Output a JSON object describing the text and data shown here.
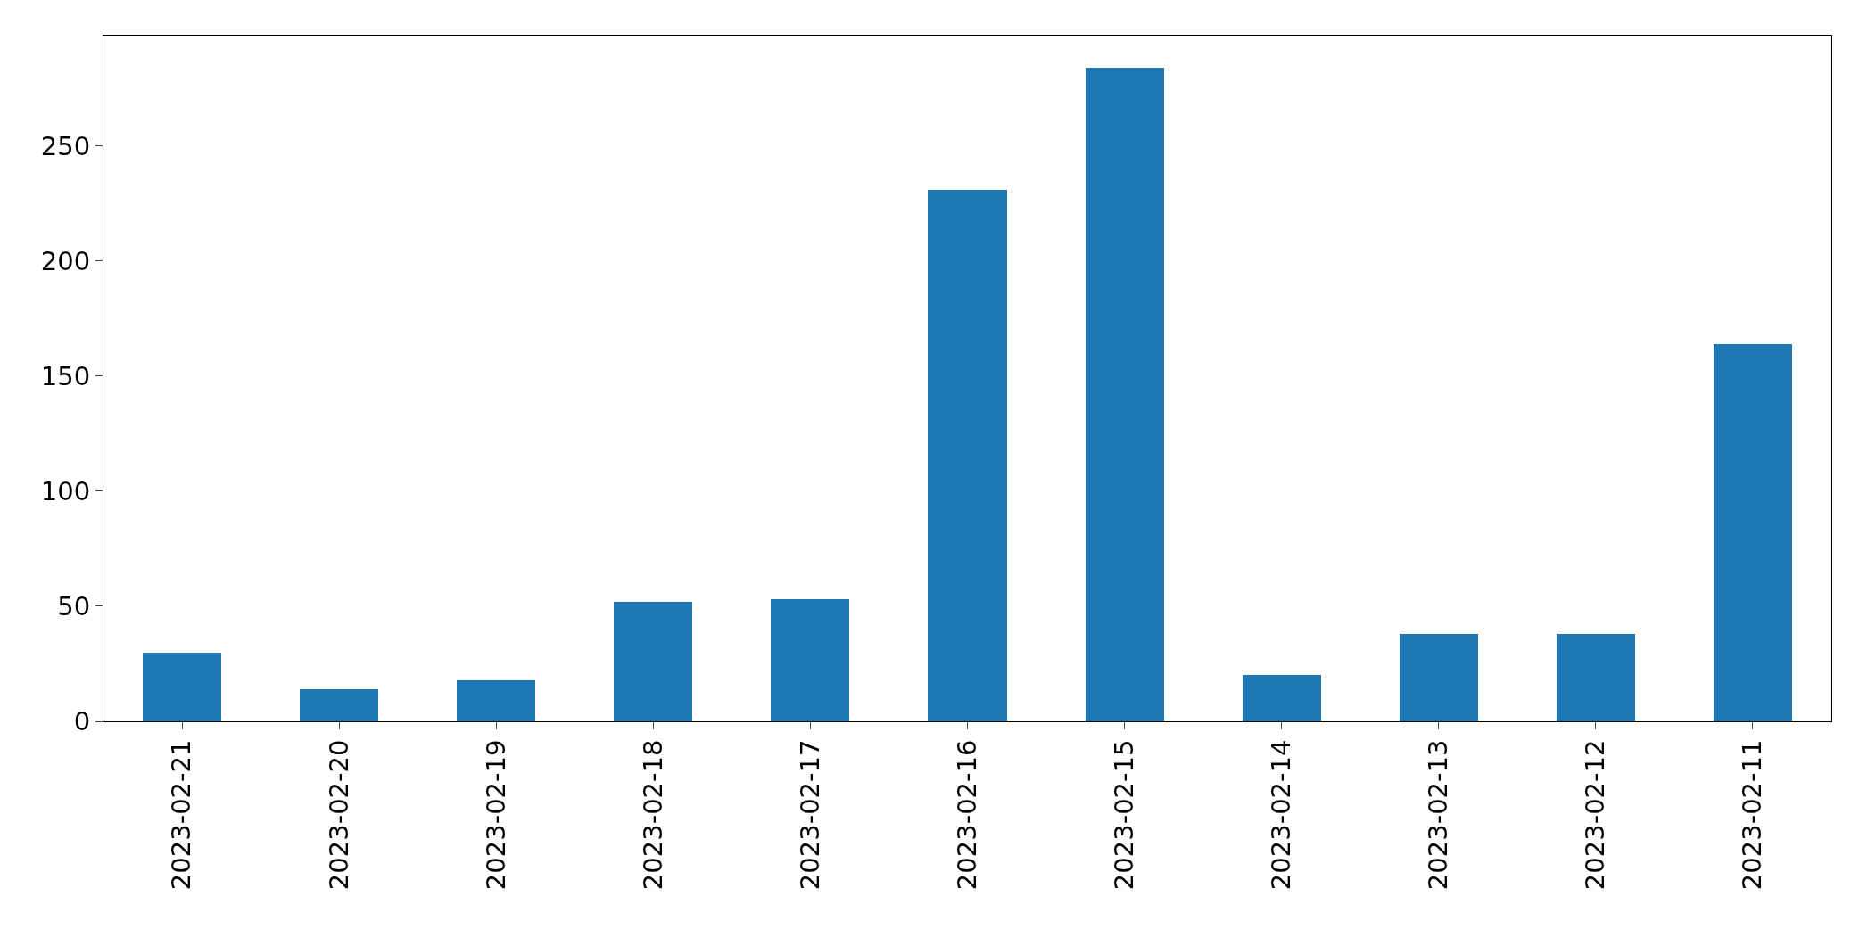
{
  "chart_data": {
    "type": "bar",
    "categories": [
      "2023-02-21",
      "2023-02-20",
      "2023-02-19",
      "2023-02-18",
      "2023-02-17",
      "2023-02-16",
      "2023-02-15",
      "2023-02-14",
      "2023-02-13",
      "2023-02-12",
      "2023-02-11"
    ],
    "values": [
      30,
      14,
      18,
      52,
      53,
      231,
      284,
      20,
      38,
      38,
      164
    ],
    "color": "#1f77b4",
    "ylim": [
      0,
      298
    ],
    "yticks": [
      0,
      50,
      100,
      150,
      200,
      250
    ],
    "grid": false,
    "legend": false
  }
}
